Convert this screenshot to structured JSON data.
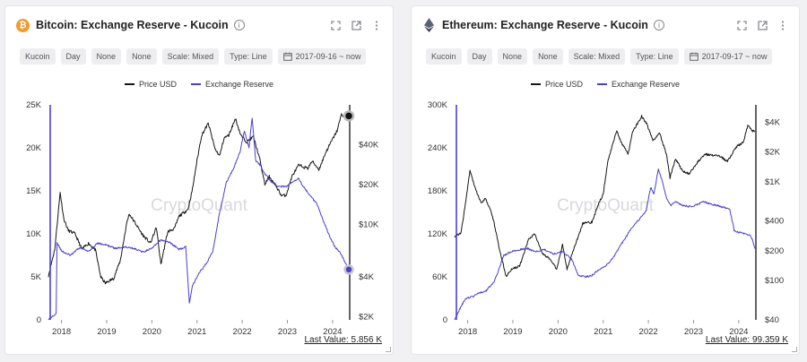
{
  "colors": {
    "price": "#151515",
    "reserve": "#4a3fd0",
    "btc": "#f39a2b",
    "eth": "#555a70"
  },
  "legend": {
    "price": "Price USD",
    "reserve": "Exchange Reserve"
  },
  "watermark": "CryptoQuant",
  "panels": [
    {
      "title": "Bitcoin: Exchange Reserve - Kucoin",
      "coin_icon": "bitcoin-icon",
      "chips": [
        "Kucoin",
        "Day",
        "None",
        "None",
        "Scale: Mixed",
        "Type: Line",
        "2017-09-16 ~ now"
      ],
      "last_value": "Last Value: 5.856 K"
    },
    {
      "title": "Ethereum: Exchange Reserve - Kucoin",
      "coin_icon": "ethereum-icon",
      "chips": [
        "Kucoin",
        "Day",
        "None",
        "None",
        "Scale: Mixed",
        "Type: Line",
        "2017-09-17 ~ now"
      ],
      "last_value": "Last Value: 99.359 K"
    }
  ],
  "chart_data": [
    {
      "type": "line",
      "title": "Bitcoin: Exchange Reserve - Kucoin",
      "x_ticks": [
        "2018",
        "2019",
        "2020",
        "2021",
        "2022",
        "2023",
        "2024"
      ],
      "x_range": [
        2017.71,
        2024.38
      ],
      "y_left": {
        "ticks": [
          "0",
          "5K",
          "10K",
          "15K",
          "20K",
          "25K"
        ],
        "range": [
          0,
          25000
        ],
        "scale": "linear",
        "series": "Exchange Reserve"
      },
      "y_right": {
        "ticks": [
          "$2K",
          "$4K",
          "$10K",
          "$20K",
          "$40K"
        ],
        "values": [
          2000,
          4000,
          10000,
          20000,
          40000
        ],
        "range": [
          1900,
          80000
        ],
        "scale": "log",
        "series": "Price USD"
      },
      "series": [
        {
          "name": "Price USD",
          "axis": "right",
          "points": [
            [
              2017.71,
              4100
            ],
            [
              2017.85,
              6500
            ],
            [
              2017.97,
              17500
            ],
            [
              2018.05,
              11000
            ],
            [
              2018.15,
              9000
            ],
            [
              2018.3,
              8500
            ],
            [
              2018.45,
              6500
            ],
            [
              2018.6,
              7200
            ],
            [
              2018.75,
              6400
            ],
            [
              2018.87,
              4000
            ],
            [
              2018.97,
              3600
            ],
            [
              2019.15,
              3900
            ],
            [
              2019.3,
              5300
            ],
            [
              2019.45,
              10500
            ],
            [
              2019.5,
              12000
            ],
            [
              2019.65,
              10000
            ],
            [
              2019.8,
              8300
            ],
            [
              2019.97,
              7200
            ],
            [
              2020.1,
              9500
            ],
            [
              2020.2,
              5000
            ],
            [
              2020.35,
              8800
            ],
            [
              2020.5,
              9300
            ],
            [
              2020.6,
              11500
            ],
            [
              2020.8,
              13000
            ],
            [
              2020.9,
              18500
            ],
            [
              2020.99,
              29000
            ],
            [
              2021.1,
              47000
            ],
            [
              2021.25,
              58000
            ],
            [
              2021.4,
              37000
            ],
            [
              2021.5,
              33000
            ],
            [
              2021.6,
              45000
            ],
            [
              2021.7,
              47000
            ],
            [
              2021.85,
              63000
            ],
            [
              2021.97,
              47000
            ],
            [
              2022.1,
              42000
            ],
            [
              2022.25,
              46000
            ],
            [
              2022.4,
              30000
            ],
            [
              2022.5,
              20000
            ],
            [
              2022.6,
              23000
            ],
            [
              2022.75,
              19500
            ],
            [
              2022.87,
              16500
            ],
            [
              2022.97,
              16600
            ],
            [
              2023.1,
              23000
            ],
            [
              2023.25,
              28000
            ],
            [
              2023.45,
              26500
            ],
            [
              2023.55,
              30000
            ],
            [
              2023.7,
              26000
            ],
            [
              2023.85,
              35000
            ],
            [
              2023.97,
              42000
            ],
            [
              2024.1,
              51000
            ],
            [
              2024.2,
              68000
            ],
            [
              2024.3,
              64000
            ],
            [
              2024.36,
              66000
            ]
          ]
        },
        {
          "name": "Exchange Reserve",
          "axis": "left",
          "points": [
            [
              2017.71,
              0
            ],
            [
              2017.84,
              600
            ],
            [
              2017.88,
              800
            ],
            [
              2017.9,
              9000
            ],
            [
              2018.0,
              8000
            ],
            [
              2018.2,
              7500
            ],
            [
              2018.4,
              8400
            ],
            [
              2018.6,
              8000
            ],
            [
              2018.8,
              8900
            ],
            [
              2019.0,
              8700
            ],
            [
              2019.2,
              8300
            ],
            [
              2019.4,
              8500
            ],
            [
              2019.6,
              8300
            ],
            [
              2019.8,
              7900
            ],
            [
              2020.0,
              8300
            ],
            [
              2020.2,
              9300
            ],
            [
              2020.4,
              9000
            ],
            [
              2020.6,
              8200
            ],
            [
              2020.75,
              8500
            ],
            [
              2020.83,
              2000
            ],
            [
              2020.9,
              4000
            ],
            [
              2021.05,
              5500
            ],
            [
              2021.2,
              6500
            ],
            [
              2021.35,
              8000
            ],
            [
              2021.5,
              12500
            ],
            [
              2021.65,
              16000
            ],
            [
              2021.8,
              17500
            ],
            [
              2021.95,
              19500
            ],
            [
              2022.05,
              22000
            ],
            [
              2022.15,
              20000
            ],
            [
              2022.22,
              23500
            ],
            [
              2022.3,
              18500
            ],
            [
              2022.4,
              18000
            ],
            [
              2022.5,
              17000
            ],
            [
              2022.65,
              16000
            ],
            [
              2022.8,
              15500
            ],
            [
              2022.97,
              15500
            ],
            [
              2023.1,
              16000
            ],
            [
              2023.25,
              16500
            ],
            [
              2023.35,
              15500
            ],
            [
              2023.5,
              14500
            ],
            [
              2023.65,
              13500
            ],
            [
              2023.8,
              11500
            ],
            [
              2023.95,
              9500
            ],
            [
              2024.05,
              8500
            ],
            [
              2024.15,
              8000
            ],
            [
              2024.25,
              7000
            ],
            [
              2024.3,
              6500
            ],
            [
              2024.36,
              5856
            ]
          ]
        }
      ]
    },
    {
      "type": "line",
      "title": "Ethereum: Exchange Reserve - Kucoin",
      "x_ticks": [
        "2018",
        "2019",
        "2020",
        "2021",
        "2022",
        "2023",
        "2024"
      ],
      "x_range": [
        2017.71,
        2024.38
      ],
      "y_left": {
        "ticks": [
          "0",
          "60K",
          "120K",
          "180K",
          "240K",
          "300K"
        ],
        "range": [
          0,
          300000
        ],
        "scale": "linear",
        "series": "Exchange Reserve"
      },
      "y_right": {
        "ticks": [
          "$40",
          "$100",
          "$200",
          "$400",
          "$1K",
          "$2K",
          "$4K"
        ],
        "values": [
          40,
          100,
          200,
          400,
          1000,
          2000,
          4000
        ],
        "range": [
          40,
          6000
        ],
        "scale": "log",
        "series": "Price USD"
      },
      "series": [
        {
          "name": "Price USD",
          "axis": "right",
          "points": [
            [
              2017.71,
              280
            ],
            [
              2017.85,
              300
            ],
            [
              2017.97,
              700
            ],
            [
              2018.05,
              1300
            ],
            [
              2018.15,
              900
            ],
            [
              2018.3,
              600
            ],
            [
              2018.4,
              680
            ],
            [
              2018.55,
              450
            ],
            [
              2018.7,
              210
            ],
            [
              2018.85,
              110
            ],
            [
              2018.97,
              130
            ],
            [
              2019.15,
              140
            ],
            [
              2019.35,
              260
            ],
            [
              2019.48,
              300
            ],
            [
              2019.65,
              190
            ],
            [
              2019.85,
              160
            ],
            [
              2019.97,
              130
            ],
            [
              2020.1,
              230
            ],
            [
              2020.2,
              130
            ],
            [
              2020.35,
              210
            ],
            [
              2020.55,
              380
            ],
            [
              2020.75,
              390
            ],
            [
              2020.9,
              600
            ],
            [
              2021.0,
              750
            ],
            [
              2021.1,
              1600
            ],
            [
              2021.3,
              3300
            ],
            [
              2021.4,
              2500
            ],
            [
              2021.55,
              1900
            ],
            [
              2021.65,
              3200
            ],
            [
              2021.85,
              4600
            ],
            [
              2021.97,
              3800
            ],
            [
              2022.1,
              2600
            ],
            [
              2022.25,
              3100
            ],
            [
              2022.4,
              1900
            ],
            [
              2022.48,
              1100
            ],
            [
              2022.6,
              1700
            ],
            [
              2022.75,
              1300
            ],
            [
              2022.9,
              1200
            ],
            [
              2023.1,
              1600
            ],
            [
              2023.25,
              1900
            ],
            [
              2023.45,
              1850
            ],
            [
              2023.6,
              1800
            ],
            [
              2023.75,
              1600
            ],
            [
              2023.85,
              1900
            ],
            [
              2023.97,
              2300
            ],
            [
              2024.1,
              2500
            ],
            [
              2024.2,
              3700
            ],
            [
              2024.3,
              3300
            ],
            [
              2024.36,
              3200
            ]
          ]
        },
        {
          "name": "Exchange Reserve",
          "axis": "left",
          "points": [
            [
              2017.71,
              0
            ],
            [
              2017.82,
              15000
            ],
            [
              2017.95,
              30000
            ],
            [
              2018.1,
              32000
            ],
            [
              2018.25,
              38000
            ],
            [
              2018.4,
              40000
            ],
            [
              2018.6,
              55000
            ],
            [
              2018.8,
              90000
            ],
            [
              2018.95,
              95000
            ],
            [
              2019.15,
              98000
            ],
            [
              2019.3,
              100000
            ],
            [
              2019.5,
              95000
            ],
            [
              2019.7,
              98000
            ],
            [
              2019.9,
              92000
            ],
            [
              2020.1,
              95000
            ],
            [
              2020.3,
              85000
            ],
            [
              2020.45,
              62000
            ],
            [
              2020.6,
              60000
            ],
            [
              2020.75,
              62000
            ],
            [
              2020.9,
              70000
            ],
            [
              2021.05,
              75000
            ],
            [
              2021.2,
              85000
            ],
            [
              2021.35,
              100000
            ],
            [
              2021.5,
              115000
            ],
            [
              2021.65,
              130000
            ],
            [
              2021.8,
              140000
            ],
            [
              2021.95,
              152000
            ],
            [
              2022.05,
              185000
            ],
            [
              2022.12,
              175000
            ],
            [
              2022.22,
              210000
            ],
            [
              2022.3,
              195000
            ],
            [
              2022.4,
              170000
            ],
            [
              2022.5,
              160000
            ],
            [
              2022.6,
              165000
            ],
            [
              2022.75,
              160000
            ],
            [
              2022.9,
              158000
            ],
            [
              2023.05,
              160000
            ],
            [
              2023.2,
              165000
            ],
            [
              2023.35,
              162000
            ],
            [
              2023.5,
              160000
            ],
            [
              2023.65,
              157000
            ],
            [
              2023.8,
              155000
            ],
            [
              2023.9,
              125000
            ],
            [
              2024.0,
              122000
            ],
            [
              2024.15,
              120000
            ],
            [
              2024.25,
              118000
            ],
            [
              2024.3,
              112000
            ],
            [
              2024.36,
              99359
            ]
          ]
        }
      ]
    }
  ]
}
